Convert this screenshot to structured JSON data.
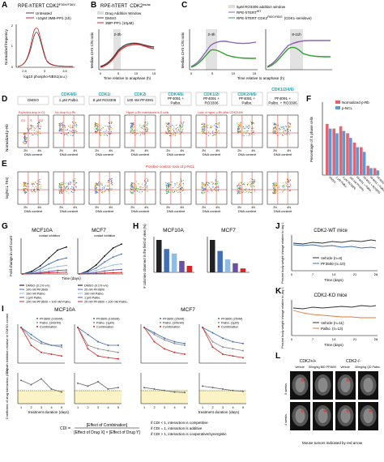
{
  "panelA": {
    "letter": "A",
    "title": "RPE-hTERT CDK2",
    "title_sup": "F36V/F36V",
    "legend": [
      "Untreated",
      "+10μM 3MB-PP1 (1h)"
    ],
    "ylabel": "Normalized frequency",
    "xlabel": "log10 phospho-NBS1(a.u.)",
    "x_ticks": [
      "2.5",
      "3",
      "3.5"
    ],
    "y_ticks": [
      "0",
      "1",
      "2"
    ],
    "colors": {
      "untreated": "#444444",
      "treated": "#d62728"
    }
  },
  "panelB": {
    "letter": "B",
    "title": "RPE-hTERT",
    "title_sup": "CDK2",
    "title_sup2": "as/as",
    "legend": [
      "Drug Addition Window",
      "DMSO",
      "3MP-PP1 (10μM)"
    ],
    "annotation": "2-3h",
    "ylabel": "Median CHS C/N ratio",
    "xlabel": "Time relative to anaphase (h)",
    "x_ticks": [
      "0",
      "5",
      "10",
      "15"
    ]
  },
  "panelC": {
    "letter": "C",
    "legend": [
      "5μM RO3306 addition window",
      "RPE-hTERT",
      "RPE-hTERT CDK2",
      "(CDK1-sensitive)"
    ],
    "legend_sups": [
      "WT",
      "F80G/F80G"
    ],
    "annotations": [
      "2-4h",
      "8-11h"
    ],
    "ylabel": "Median CHS C/N ratio",
    "xlabel": "Time relative to anaphase (h)",
    "x_ticks": [
      "0",
      "5",
      "10",
      "15"
    ],
    "colors": {
      "wt": "#8e63b6",
      "mutant": "#2ca02c"
    }
  },
  "panelD": {
    "letter": "D",
    "columns": [
      {
        "target": "",
        "drug": "DMSO",
        "note": "Expected drop in G1"
      },
      {
        "target": "CDK4/6i",
        "drug": "1 μM Palbo.",
        "note": "No drop in p-Rb"
      },
      {
        "target": "CDK1i",
        "drug": "9 μM RO3306",
        "note": ""
      },
      {
        "target": "CDK2i",
        "drug": "100 nM PF4091",
        "note": "Hyper p-Rb maintained in S cells"
      },
      {
        "target": "CDK4/6i",
        "drug": "PF4091 + Palbo.",
        "note": ""
      },
      {
        "target": "CDK1/2i",
        "drug": "PF4091 + RO3306",
        "note": "Loss of hyper p-Rb after CDK2/4/6i"
      },
      {
        "target": "CDK2/4/6i",
        "drug": "PF4091 + Palbo.",
        "note": ""
      },
      {
        "target": "CDK1/2/4/6i",
        "drug": "PF4091 + Palbo. + RO3306",
        "note": ""
      }
    ],
    "phase_labels": [
      "G1",
      "S",
      "G2"
    ],
    "ylabel": "Normalized p-Rb",
    "xlabel": "DNA content",
    "x_ticks": [
      "2N",
      "4N"
    ]
  },
  "panelE": {
    "letter": "E",
    "note": "Positive control: loss of p-NCL",
    "ylabel": "log(NCL T84)",
    "xlabel": "DNA content",
    "x_ticks": [
      "2N",
      "4N"
    ]
  },
  "panelF": {
    "letter": "F",
    "legend": [
      "Normalized p-Rb",
      "p-NCL"
    ],
    "ylabel": "Percentage of S phase cells",
    "categories": [
      "DMSO",
      "1 μM Palbo.",
      "9 μM RO3306",
      "100 nM PF4091",
      "PF4091 + Palbo.",
      "PF4091 + RO3306",
      "PF4091 + Palbo. + RO3306",
      "PF4091 + RO3306 + Palbo."
    ],
    "colors": {
      "prb": "#e8636f",
      "ncl": "#5b9bd5"
    }
  },
  "panelG": {
    "letter": "G",
    "titles": [
      "MCF10A",
      "MCF7"
    ],
    "annotations": [
      "contact inhibition",
      "contact inhibition"
    ],
    "ylabel": "Fold change in cell count",
    "xlabel": "Time (days)",
    "legend_left": [
      "DMSO (0.1% v/v)",
      "100 nM PF3600",
      "100 nM Palbo.",
      "1 μM Palbo.",
      "100 nM PF3600 + 100 nM Palbo."
    ],
    "legend_right": [
      "DMSO (0.1% v/v)",
      "25 nM PF3600",
      "100 nM Palbo.",
      "1 μM Palbo.",
      "25 nM PF3600 + 100 nM Palbo."
    ]
  },
  "panelH": {
    "letter": "H",
    "titles": [
      "MCF10A",
      "MCF7"
    ],
    "ylabel": "# colonies observed in the field of view (%)"
  },
  "panelI": {
    "letter": "I",
    "titles": [
      "MCF10A",
      "MCF7"
    ],
    "legend_left": [
      "PF3600 (100nM)",
      "Palbo. (100nM)",
      "Combination"
    ],
    "legend_left2": [
      "PF3600 (100nM)",
      "Palbo. (1μM)",
      "Combination"
    ],
    "legend_right": [
      "PF3600 (25nM)",
      "Palbo. (100nM)",
      "Combination"
    ],
    "legend_right2": [
      "PF3600 (25nM)",
      "Palbo. (1μM)",
      "Combination"
    ],
    "ylabel_top": "Growth inhibition relative to DMSO control",
    "ylabel_bottom": "Coefficient of drug interaction (CDI)",
    "xlabel": "treatment duration (days)",
    "x_ticks": [
      "1",
      "2",
      "3",
      "4",
      "5"
    ],
    "formula_lhs": "CDI =",
    "formula_num": "[Effect of Combination]",
    "formula_den": "[Effect of Drug X] × [Effect of Drug Y]",
    "rules": [
      "if CDI < 1, interaction is competitive",
      "if CDI = 1, interaction is additive",
      "if CDI > 1, interaction is cooperative/synergistic"
    ],
    "colors": {
      "pf": "#3f6fb5",
      "palbo": "#888888",
      "combo": "#d62728"
    }
  },
  "panelJ": {
    "letter": "J",
    "title": "CDK2-WT mice",
    "ylabel": "Percent body weight change relative to day 1",
    "xlabel": "Time (days)",
    "legend": [
      "Vehicle (n=8)",
      "PF3600 (n=10)"
    ],
    "x_ticks": [
      "0",
      "7",
      "14",
      "21",
      "28"
    ]
  },
  "panelK": {
    "letter": "K",
    "title": "CDK2-KO mice",
    "ylabel": "Percent body weight change relative to day 1",
    "xlabel": "Time (days)",
    "legend": [
      "Vehicle (n=11)",
      "Palbo. (n=13)"
    ],
    "x_ticks": [
      "0",
      "7",
      "14",
      "21",
      "28"
    ]
  },
  "panelL": {
    "letter": "L",
    "groups": [
      "CDK2+/+",
      "CDK2-/-"
    ],
    "columns": [
      "Vehicle",
      "50mg/kg BID PF3600",
      "Vehicle",
      "50mg/kg QD Palbo."
    ],
    "rows": [
      "0 weeks",
      "4 weeks"
    ],
    "caption": "Mouse tumors indicated by red arrow"
  }
}
